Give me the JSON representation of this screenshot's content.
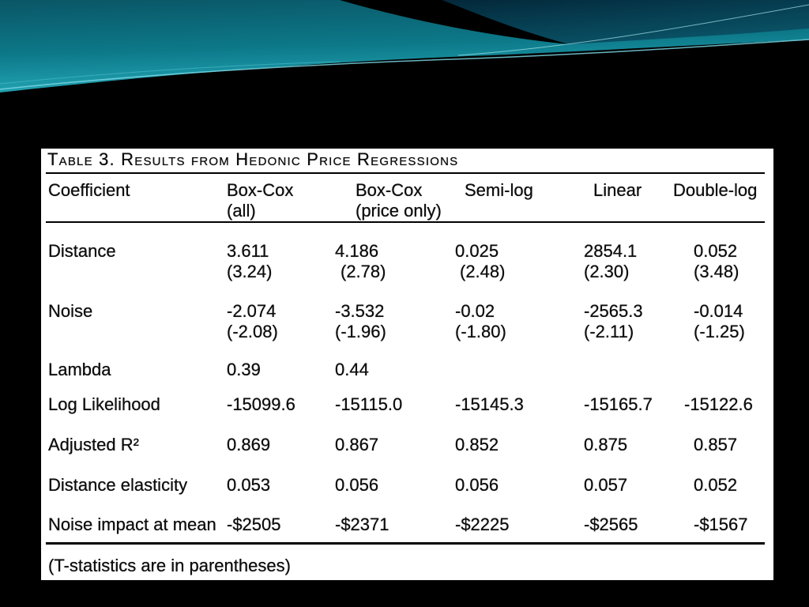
{
  "theme": {
    "background": "#000000",
    "header_teal": "#0c7888",
    "header_navy": "#04313f",
    "highlight": "#7ad6e3",
    "panel": "#ffffff"
  },
  "table": {
    "title": "Table 3. Results from Hedonic Price Regressions",
    "columns": [
      {
        "label": "Coefficient"
      },
      {
        "label": "Box-Cox",
        "sublabel": "(all)"
      },
      {
        "label": "Box-Cox",
        "sublabel": "(price only)"
      },
      {
        "label": "Semi-log"
      },
      {
        "label": "Linear"
      },
      {
        "label": "Double-log"
      }
    ],
    "rows": [
      {
        "label": "Distance",
        "values": [
          "3.611",
          "4.186",
          "0.025",
          "2854.1",
          "0.052"
        ],
        "t_stats": [
          "(3.24)",
          "(2.78)",
          "(2.48)",
          "(2.30)",
          "(3.48)"
        ]
      },
      {
        "label": "Noise",
        "values": [
          "-2.074",
          "-3.532",
          "-0.02",
          "-2565.3",
          "-0.014"
        ],
        "t_stats": [
          "(-2.08)",
          "(-1.96)",
          "(-1.80)",
          "(-2.11)",
          "(-1.25)"
        ]
      },
      {
        "label": "Lambda",
        "values": [
          "0.39",
          "0.44"
        ]
      },
      {
        "label": "Log Likelihood",
        "values": [
          "-15099.6",
          "-15115.0",
          "-15145.3",
          "-15165.7",
          "-15122.6"
        ]
      },
      {
        "label": "Adjusted R²",
        "values": [
          "0.869",
          "0.867",
          "0.852",
          "0.875",
          "0.857"
        ]
      },
      {
        "label": "Distance elasticity",
        "values": [
          "0.053",
          "0.056",
          "0.056",
          "0.057",
          "0.052"
        ]
      },
      {
        "label": "Noise impact at mean",
        "values": [
          "-$2505",
          "-$2371",
          "-$2225",
          "-$2565",
          "-$1567"
        ]
      }
    ],
    "footnote": "(T-statistics are in parentheses)"
  }
}
